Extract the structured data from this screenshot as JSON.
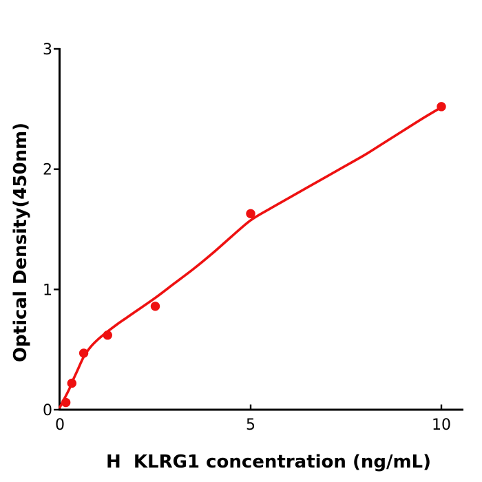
{
  "figure": {
    "background_color": "#ffffff",
    "axis_color": "#000000",
    "accent_color": "#ee1111"
  },
  "chart_data": {
    "type": "scatter",
    "title": "",
    "xlabel": "H  KLRG1 concentration (ng/mL)",
    "ylabel": "Optical Density(450nm)",
    "xlim": [
      0,
      10.6
    ],
    "ylim": [
      0,
      3
    ],
    "x_ticks": [
      0,
      5,
      10
    ],
    "x_tick_labels": [
      "0",
      "5",
      "10"
    ],
    "y_ticks": [
      0,
      1,
      2,
      3
    ],
    "y_tick_labels": [
      "0",
      "1",
      "2",
      "3"
    ],
    "grid": false,
    "legend_position": "none",
    "series": [
      {
        "name": "measured-points",
        "kind": "scatter",
        "color": "#ee1111",
        "marker": "circle",
        "points": [
          [
            0.156,
            0.06
          ],
          [
            0.3125,
            0.22
          ],
          [
            0.625,
            0.47
          ],
          [
            1.25,
            0.62
          ],
          [
            2.5,
            0.86
          ],
          [
            5,
            1.63
          ],
          [
            10,
            2.52
          ]
        ]
      },
      {
        "name": "fitted-curve",
        "kind": "line",
        "color": "#ee1111",
        "points": [
          [
            0,
            0.02
          ],
          [
            0.08,
            0.07
          ],
          [
            0.156,
            0.115
          ],
          [
            0.25,
            0.175
          ],
          [
            0.3125,
            0.225
          ],
          [
            0.45,
            0.32
          ],
          [
            0.625,
            0.44
          ],
          [
            0.8,
            0.52
          ],
          [
            1.0,
            0.585
          ],
          [
            1.25,
            0.65
          ],
          [
            1.5,
            0.71
          ],
          [
            1.75,
            0.765
          ],
          [
            2.0,
            0.82
          ],
          [
            2.5,
            0.93
          ],
          [
            3.0,
            1.05
          ],
          [
            3.5,
            1.17
          ],
          [
            4.0,
            1.3
          ],
          [
            4.5,
            1.44
          ],
          [
            5.0,
            1.575
          ],
          [
            5.5,
            1.67
          ],
          [
            6.0,
            1.76
          ],
          [
            6.5,
            1.85
          ],
          [
            7.0,
            1.94
          ],
          [
            7.5,
            2.03
          ],
          [
            8.0,
            2.12
          ],
          [
            8.5,
            2.22
          ],
          [
            9.0,
            2.32
          ],
          [
            9.5,
            2.42
          ],
          [
            10.03,
            2.52
          ]
        ]
      }
    ]
  }
}
